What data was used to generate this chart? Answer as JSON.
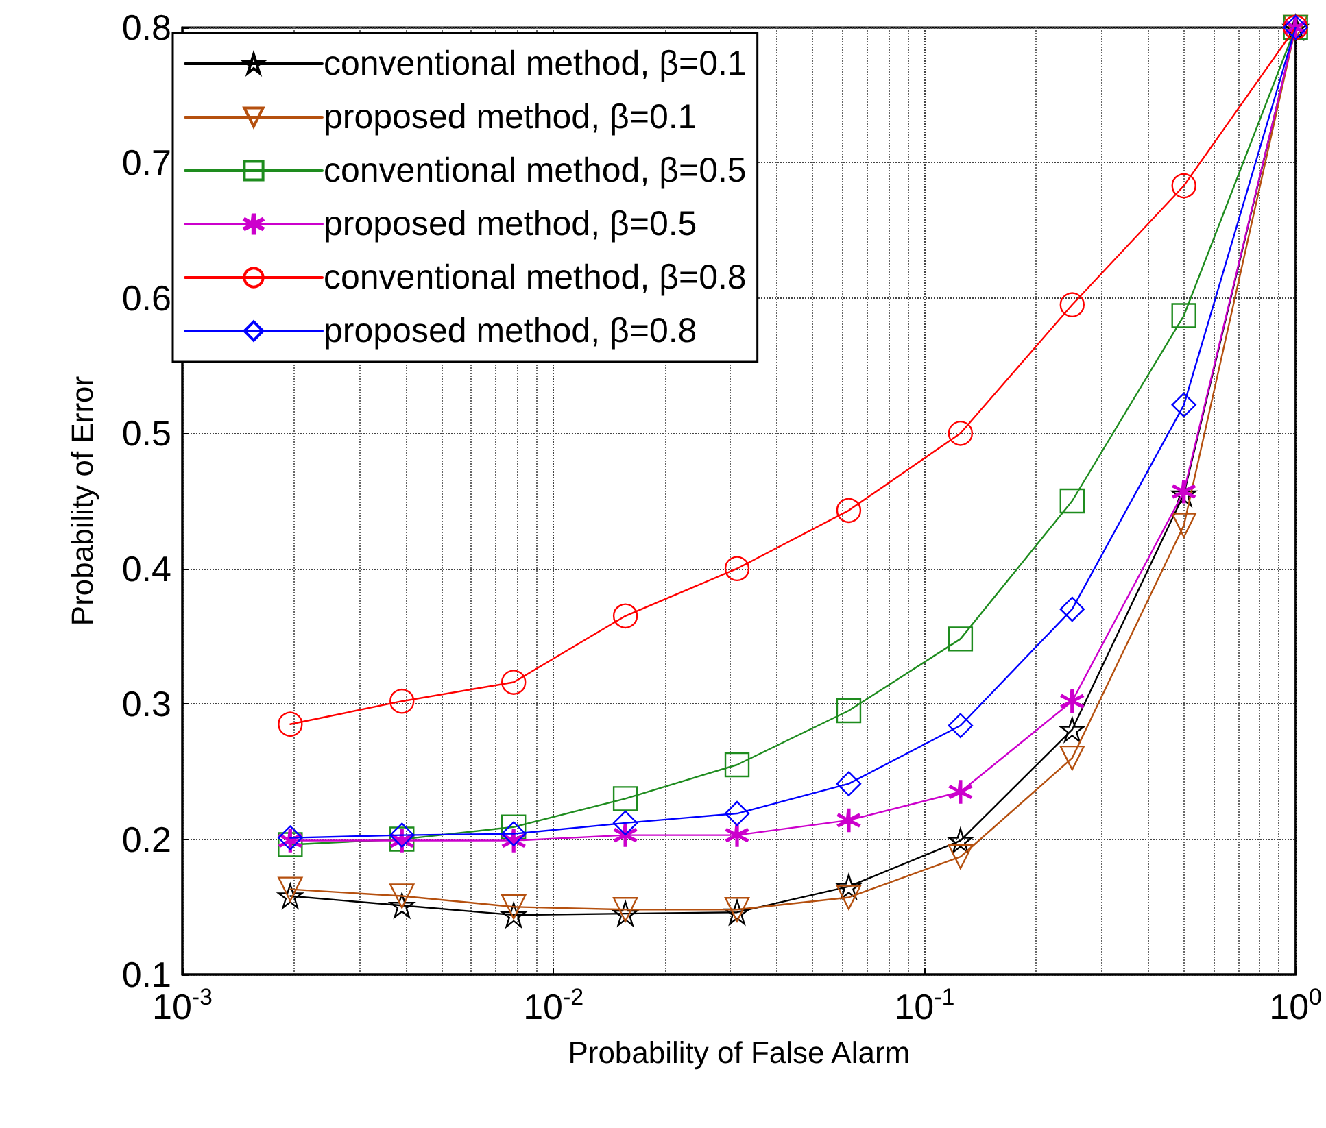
{
  "chart_data": {
    "type": "line",
    "xlabel": "Probability of False Alarm",
    "ylabel": "Probability of Error",
    "x": [
      0.001953,
      0.003906,
      0.007813,
      0.015625,
      0.03125,
      0.0625,
      0.125,
      0.25,
      0.5,
      1
    ],
    "series": [
      {
        "name": "conventional method, β=0.1",
        "color": "#000000",
        "marker": "star",
        "values": [
          0.158,
          0.151,
          0.144,
          0.145,
          0.146,
          0.165,
          0.199,
          0.281,
          0.455,
          0.8
        ]
      },
      {
        "name": "proposed method, β=0.1",
        "color": "#b5500f",
        "marker": "triangle",
        "values": [
          0.163,
          0.158,
          0.15,
          0.148,
          0.148,
          0.157,
          0.187,
          0.26,
          0.432,
          0.8
        ]
      },
      {
        "name": "conventional method, β=0.5",
        "color": "#1e8c1e",
        "marker": "square",
        "values": [
          0.196,
          0.2,
          0.209,
          0.23,
          0.255,
          0.295,
          0.348,
          0.45,
          0.587,
          0.8
        ]
      },
      {
        "name": "proposed method, β=0.5",
        "color": "#cc00cc",
        "marker": "cross",
        "values": [
          0.199,
          0.199,
          0.199,
          0.203,
          0.203,
          0.214,
          0.235,
          0.302,
          0.457,
          0.8
        ]
      },
      {
        "name": "conventional method, β=0.8",
        "color": "#ff0000",
        "marker": "circle",
        "values": [
          0.285,
          0.302,
          0.316,
          0.365,
          0.4,
          0.443,
          0.5,
          0.595,
          0.683,
          0.8
        ]
      },
      {
        "name": "proposed method, β=0.8",
        "color": "#0000ff",
        "marker": "diamond",
        "values": [
          0.201,
          0.203,
          0.204,
          0.212,
          0.219,
          0.241,
          0.284,
          0.37,
          0.521,
          0.8
        ]
      }
    ],
    "log": "x",
    "xlim": [
      0.001,
      1
    ],
    "xticks": [
      {
        "value": 0.001,
        "label": "10$^{-3}$"
      },
      {
        "value": 0.01,
        "label": "10$^{-2}$"
      },
      {
        "value": 0.1,
        "label": "10$^{-1}$"
      },
      {
        "value": 1,
        "label": "10$^{0}$"
      }
    ],
    "ylim": [
      0.1,
      0.8
    ],
    "yticks": [
      0.1,
      0.2,
      0.3,
      0.4,
      0.5,
      0.6,
      0.7,
      0.8
    ],
    "grid": true,
    "legend": "top left",
    "line_style": "solid"
  }
}
